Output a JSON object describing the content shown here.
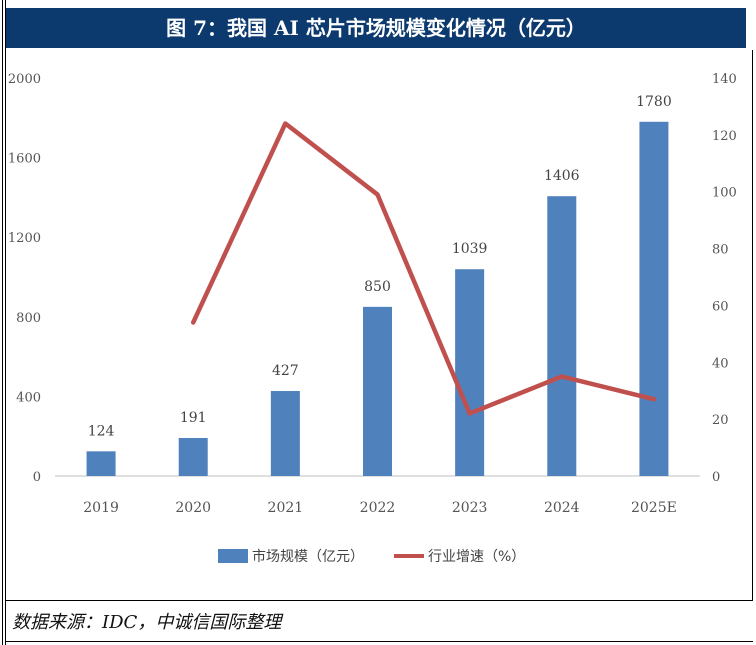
{
  "header": {
    "title": "图 7：我国 AI 芯片市场规模变化情况（亿元）"
  },
  "footer": {
    "source": "数据来源：IDC，中诚信国际整理"
  },
  "colors": {
    "bar": "#4f81bd",
    "line": "#c0504d",
    "header_bg": "#0d3a6e",
    "axis": "#bfbfbf"
  },
  "chart_data": {
    "type": "bar",
    "title": "",
    "categories": [
      "2019",
      "2020",
      "2021",
      "2022",
      "2023",
      "2024",
      "2025E"
    ],
    "series": [
      {
        "name": "市场规模（亿元）",
        "type": "bar",
        "axis": "left",
        "values": [
          124,
          191,
          427,
          850,
          1039,
          1406,
          1780
        ]
      },
      {
        "name": "行业增速（%）",
        "type": "line",
        "axis": "right",
        "values": [
          null,
          54,
          124,
          99,
          22,
          35,
          27
        ]
      }
    ],
    "data_labels": [
      "124",
      "191",
      "427",
      "850",
      "1039",
      "1406",
      "1780"
    ],
    "y_left": {
      "ylim": [
        0,
        2000
      ],
      "ticks": [
        "0",
        "400",
        "800",
        "1200",
        "1600",
        "2000"
      ]
    },
    "y_right": {
      "ylim": [
        0,
        140
      ],
      "ticks": [
        "0",
        "20",
        "40",
        "60",
        "80",
        "100",
        "120",
        "140"
      ]
    },
    "legend": {
      "placement": "bottom-center",
      "entries": [
        "市场规模（亿元）",
        "行业增速（%）"
      ]
    },
    "grid": false
  }
}
